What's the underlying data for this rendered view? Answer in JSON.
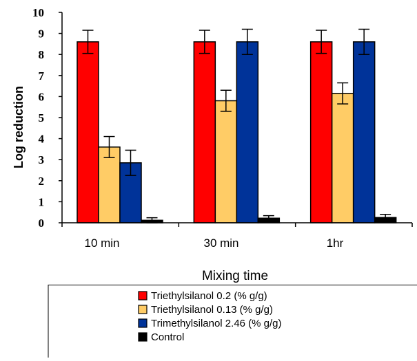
{
  "chart_data": {
    "type": "bar",
    "xlabel": "Mixing time",
    "ylabel": "Log reduction",
    "ylim": [
      0,
      10
    ],
    "yticks": [
      "0",
      "1",
      "2",
      "3",
      "4",
      "5",
      "6",
      "7",
      "8",
      "9",
      "10"
    ],
    "categories": [
      "10 min",
      "30 min",
      "1hr"
    ],
    "grid": false,
    "legend_position": "bottom",
    "series": [
      {
        "name": "Triethylsilanol 0.2 (% g/g)",
        "color": "#ff0000",
        "values": [
          8.6,
          8.6,
          8.6
        ],
        "errors": [
          0.55,
          0.55,
          0.55
        ]
      },
      {
        "name": "Triethylsilanol 0.13 (% g/g)",
        "color": "#ffcc66",
        "values": [
          3.6,
          5.8,
          6.15
        ],
        "errors": [
          0.5,
          0.5,
          0.5
        ]
      },
      {
        "name": "Trimethylsilanol 2.46 (% g/g)",
        "color": "#003399",
        "values": [
          2.85,
          8.6,
          8.6
        ],
        "errors": [
          0.6,
          0.6,
          0.6
        ]
      },
      {
        "name": "Control",
        "color": "#000000",
        "values": [
          0.12,
          0.22,
          0.25
        ],
        "errors": [
          0.12,
          0.12,
          0.15
        ]
      }
    ]
  }
}
